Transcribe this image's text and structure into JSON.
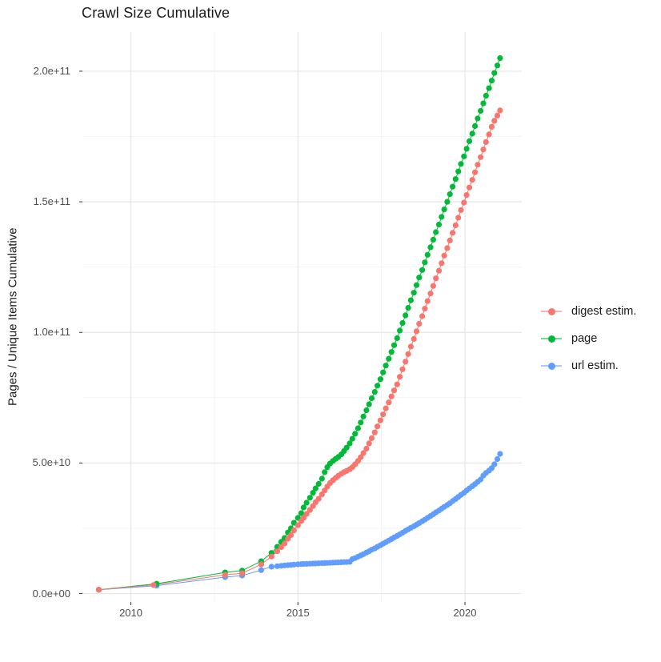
{
  "title": "Crawl Size Cumulative",
  "colors": {
    "digest": "#F8766D",
    "page": "#00BA38",
    "url": "#619CFF",
    "grid_major": "#E6E6E6",
    "grid_minor": "#F2F2F2",
    "tick_mark": "#333333",
    "axis_text": "#4d4d4d",
    "title_text": "#1a1a1a",
    "background": "#FFFFFF"
  },
  "chart_data": {
    "type": "scatter",
    "title": "Crawl Size Cumulative",
    "xlabel": "",
    "ylabel": "Pages / Unique Items Cumulative",
    "grid": true,
    "legend_position": "right",
    "value_unit": "1e9 pages",
    "xlim": [
      2008.55,
      2021.7
    ],
    "ylim": [
      -3.2,
      215
    ],
    "x_ticks": [
      {
        "value": 2010,
        "label": "2010"
      },
      {
        "value": 2015,
        "label": "2015"
      },
      {
        "value": 2020,
        "label": "2020"
      }
    ],
    "y_ticks": [
      {
        "value": 0,
        "label": "0.0e+00"
      },
      {
        "value": 50,
        "label": "5.0e+10"
      },
      {
        "value": 100,
        "label": "1.0e+11"
      },
      {
        "value": 150,
        "label": "1.5e+11"
      },
      {
        "value": 200,
        "label": "2.0e+11"
      }
    ],
    "x_minor_ticks": [
      2012.5,
      2017.5
    ],
    "y_minor_ticks": [
      25,
      75,
      125,
      175
    ],
    "legend": [
      {
        "label": "digest estim.",
        "color": "#F8766D"
      },
      {
        "label": "page",
        "color": "#00BA38"
      },
      {
        "label": "url estim.",
        "color": "#619CFF"
      }
    ],
    "series": [
      {
        "name": "url estim.",
        "color": "#619CFF",
        "points": [
          [
            2009.04,
            1.45
          ],
          [
            2010.77,
            3.05
          ],
          [
            2012.82,
            6.3
          ],
          [
            2013.33,
            6.9
          ],
          [
            2013.9,
            9.0
          ],
          [
            2014.21,
            10.3
          ],
          [
            2014.38,
            10.5
          ],
          [
            2014.5,
            10.65
          ],
          [
            2014.6,
            10.8
          ],
          [
            2014.7,
            10.9
          ],
          [
            2014.79,
            11.0
          ],
          [
            2014.88,
            11.1
          ],
          [
            2015.0,
            11.2
          ],
          [
            2015.1,
            11.3
          ],
          [
            2015.17,
            11.35
          ],
          [
            2015.26,
            11.4
          ],
          [
            2015.36,
            11.45
          ],
          [
            2015.45,
            11.5
          ],
          [
            2015.53,
            11.55
          ],
          [
            2015.62,
            11.6
          ],
          [
            2015.72,
            11.65
          ],
          [
            2015.8,
            11.7
          ],
          [
            2015.88,
            11.75
          ],
          [
            2015.96,
            11.8
          ],
          [
            2016.05,
            11.85
          ],
          [
            2016.13,
            11.9
          ],
          [
            2016.21,
            11.95
          ],
          [
            2016.3,
            12.0
          ],
          [
            2016.38,
            12.05
          ],
          [
            2016.46,
            12.1
          ],
          [
            2016.55,
            12.15
          ],
          [
            2016.63,
            13.2
          ],
          [
            2016.71,
            13.6
          ],
          [
            2016.8,
            14.1
          ],
          [
            2016.88,
            14.6
          ],
          [
            2016.96,
            15.1
          ],
          [
            2017.05,
            15.7
          ],
          [
            2017.13,
            16.2
          ],
          [
            2017.21,
            16.8
          ],
          [
            2017.3,
            17.3
          ],
          [
            2017.38,
            17.9
          ],
          [
            2017.47,
            18.5
          ],
          [
            2017.55,
            19.1
          ],
          [
            2017.63,
            19.7
          ],
          [
            2017.72,
            20.3
          ],
          [
            2017.8,
            20.9
          ],
          [
            2017.88,
            21.5
          ],
          [
            2017.97,
            22.1
          ],
          [
            2018.05,
            22.7
          ],
          [
            2018.13,
            23.3
          ],
          [
            2018.22,
            24.0
          ],
          [
            2018.3,
            24.6
          ],
          [
            2018.38,
            25.2
          ],
          [
            2018.47,
            25.8
          ],
          [
            2018.55,
            26.4
          ],
          [
            2018.63,
            27.0
          ],
          [
            2018.72,
            27.7
          ],
          [
            2018.8,
            28.3
          ],
          [
            2018.88,
            29.0
          ],
          [
            2018.97,
            29.7
          ],
          [
            2019.05,
            30.4
          ],
          [
            2019.13,
            31.1
          ],
          [
            2019.22,
            31.8
          ],
          [
            2019.3,
            32.5
          ],
          [
            2019.38,
            33.2
          ],
          [
            2019.47,
            33.9
          ],
          [
            2019.55,
            34.6
          ],
          [
            2019.63,
            35.4
          ],
          [
            2019.72,
            36.2
          ],
          [
            2019.8,
            37.0
          ],
          [
            2019.88,
            37.8
          ],
          [
            2019.97,
            38.6
          ],
          [
            2020.05,
            39.5
          ],
          [
            2020.13,
            40.3
          ],
          [
            2020.22,
            41.1
          ],
          [
            2020.3,
            41.9
          ],
          [
            2020.38,
            42.8
          ],
          [
            2020.47,
            43.7
          ],
          [
            2020.55,
            45.2
          ],
          [
            2020.63,
            46.2
          ],
          [
            2020.72,
            47.1
          ],
          [
            2020.8,
            48.0
          ],
          [
            2020.88,
            49.5
          ],
          [
            2020.97,
            51.5
          ],
          [
            2021.05,
            53.5
          ]
        ]
      },
      {
        "name": "page",
        "color": "#00BA38",
        "points": [
          [
            2009.04,
            1.5
          ],
          [
            2010.77,
            3.8
          ],
          [
            2012.82,
            8.1
          ],
          [
            2013.33,
            8.8
          ],
          [
            2013.9,
            12.4
          ],
          [
            2014.21,
            15.6
          ],
          [
            2014.38,
            17.9
          ],
          [
            2014.5,
            19.8
          ],
          [
            2014.6,
            21.3
          ],
          [
            2014.7,
            23.4
          ],
          [
            2014.79,
            25.0
          ],
          [
            2014.88,
            27.1
          ],
          [
            2015.0,
            29.0
          ],
          [
            2015.1,
            30.8
          ],
          [
            2015.17,
            33.0
          ],
          [
            2015.26,
            34.8
          ],
          [
            2015.36,
            36.7
          ],
          [
            2015.45,
            38.6
          ],
          [
            2015.53,
            40.3
          ],
          [
            2015.62,
            42.0
          ],
          [
            2015.72,
            44.0
          ],
          [
            2015.8,
            46.5
          ],
          [
            2015.88,
            48.4
          ],
          [
            2015.96,
            49.8
          ],
          [
            2016.05,
            50.8
          ],
          [
            2016.13,
            51.6
          ],
          [
            2016.21,
            52.3
          ],
          [
            2016.3,
            53.3
          ],
          [
            2016.38,
            54.6
          ],
          [
            2016.46,
            55.9
          ],
          [
            2016.55,
            57.5
          ],
          [
            2016.63,
            59.3
          ],
          [
            2016.71,
            61.2
          ],
          [
            2016.8,
            63.3
          ],
          [
            2016.88,
            65.5
          ],
          [
            2016.96,
            67.8
          ],
          [
            2017.05,
            70.2
          ],
          [
            2017.13,
            72.5
          ],
          [
            2017.21,
            74.8
          ],
          [
            2017.3,
            77.2
          ],
          [
            2017.38,
            79.6
          ],
          [
            2017.47,
            82.1
          ],
          [
            2017.55,
            84.7
          ],
          [
            2017.63,
            87.3
          ],
          [
            2017.72,
            89.9
          ],
          [
            2017.8,
            92.5
          ],
          [
            2017.88,
            95.1
          ],
          [
            2017.97,
            97.8
          ],
          [
            2018.05,
            100.7
          ],
          [
            2018.13,
            103.6
          ],
          [
            2018.22,
            106.5
          ],
          [
            2018.3,
            109.4
          ],
          [
            2018.38,
            112.3
          ],
          [
            2018.47,
            115.2
          ],
          [
            2018.55,
            118.1
          ],
          [
            2018.63,
            121.0
          ],
          [
            2018.72,
            123.9
          ],
          [
            2018.8,
            126.8
          ],
          [
            2018.88,
            129.7
          ],
          [
            2018.97,
            132.6
          ],
          [
            2019.05,
            135.5
          ],
          [
            2019.13,
            138.4
          ],
          [
            2019.22,
            141.3
          ],
          [
            2019.3,
            144.2
          ],
          [
            2019.38,
            147.1
          ],
          [
            2019.47,
            150.0
          ],
          [
            2019.55,
            152.9
          ],
          [
            2019.63,
            155.8
          ],
          [
            2019.72,
            158.7
          ],
          [
            2019.8,
            161.6
          ],
          [
            2019.88,
            164.5
          ],
          [
            2019.97,
            167.4
          ],
          [
            2020.05,
            170.3
          ],
          [
            2020.13,
            173.2
          ],
          [
            2020.22,
            176.1
          ],
          [
            2020.3,
            179.0
          ],
          [
            2020.38,
            181.9
          ],
          [
            2020.47,
            184.8
          ],
          [
            2020.55,
            187.7
          ],
          [
            2020.63,
            190.6
          ],
          [
            2020.72,
            193.5
          ],
          [
            2020.8,
            196.4
          ],
          [
            2020.88,
            199.3
          ],
          [
            2020.97,
            202.2
          ],
          [
            2021.05,
            205.0
          ]
        ]
      },
      {
        "name": "digest estim.",
        "color": "#F8766D",
        "points": [
          [
            2009.04,
            1.5
          ],
          [
            2010.68,
            3.3
          ],
          [
            2012.82,
            7.2
          ],
          [
            2013.33,
            7.8
          ],
          [
            2013.9,
            11.2
          ],
          [
            2014.21,
            14.2
          ],
          [
            2014.38,
            16.2
          ],
          [
            2014.5,
            17.8
          ],
          [
            2014.6,
            19.2
          ],
          [
            2014.7,
            21.0
          ],
          [
            2014.79,
            22.4
          ],
          [
            2014.88,
            24.2
          ],
          [
            2015.0,
            26.2
          ],
          [
            2015.1,
            27.8
          ],
          [
            2015.17,
            29.0
          ],
          [
            2015.26,
            30.5
          ],
          [
            2015.36,
            32.0
          ],
          [
            2015.45,
            33.5
          ],
          [
            2015.53,
            35.0
          ],
          [
            2015.62,
            36.3
          ],
          [
            2015.72,
            38.0
          ],
          [
            2015.8,
            39.5
          ],
          [
            2015.88,
            41.0
          ],
          [
            2015.96,
            42.3
          ],
          [
            2016.05,
            43.4
          ],
          [
            2016.13,
            44.3
          ],
          [
            2016.21,
            45.1
          ],
          [
            2016.3,
            45.9
          ],
          [
            2016.38,
            46.5
          ],
          [
            2016.46,
            47.0
          ],
          [
            2016.55,
            47.6
          ],
          [
            2016.63,
            48.4
          ],
          [
            2016.71,
            49.5
          ],
          [
            2016.8,
            50.8
          ],
          [
            2016.88,
            52.2
          ],
          [
            2016.96,
            53.8
          ],
          [
            2017.05,
            55.5
          ],
          [
            2017.13,
            57.5
          ],
          [
            2017.21,
            59.5
          ],
          [
            2017.3,
            61.7
          ],
          [
            2017.38,
            64.0
          ],
          [
            2017.47,
            66.3
          ],
          [
            2017.55,
            68.6
          ],
          [
            2017.63,
            70.9
          ],
          [
            2017.72,
            73.2
          ],
          [
            2017.8,
            75.5
          ],
          [
            2017.88,
            77.8
          ],
          [
            2017.97,
            80.1
          ],
          [
            2018.05,
            83.0
          ],
          [
            2018.13,
            85.9
          ],
          [
            2018.22,
            88.8
          ],
          [
            2018.3,
            91.7
          ],
          [
            2018.38,
            94.6
          ],
          [
            2018.47,
            97.5
          ],
          [
            2018.55,
            100.4
          ],
          [
            2018.63,
            103.3
          ],
          [
            2018.72,
            106.2
          ],
          [
            2018.8,
            109.1
          ],
          [
            2018.88,
            112.0
          ],
          [
            2018.97,
            114.9
          ],
          [
            2019.05,
            117.8
          ],
          [
            2019.13,
            120.7
          ],
          [
            2019.22,
            123.6
          ],
          [
            2019.3,
            126.5
          ],
          [
            2019.38,
            129.4
          ],
          [
            2019.47,
            132.3
          ],
          [
            2019.55,
            135.2
          ],
          [
            2019.63,
            138.1
          ],
          [
            2019.72,
            141.0
          ],
          [
            2019.8,
            143.9
          ],
          [
            2019.88,
            146.8
          ],
          [
            2019.97,
            149.7
          ],
          [
            2020.05,
            152.6
          ],
          [
            2020.13,
            155.5
          ],
          [
            2020.22,
            158.4
          ],
          [
            2020.3,
            161.3
          ],
          [
            2020.38,
            164.2
          ],
          [
            2020.47,
            167.1
          ],
          [
            2020.55,
            170.0
          ],
          [
            2020.63,
            172.9
          ],
          [
            2020.72,
            175.8
          ],
          [
            2020.8,
            178.7
          ],
          [
            2020.88,
            181.0
          ],
          [
            2020.97,
            183.0
          ],
          [
            2021.05,
            185.0
          ]
        ]
      }
    ]
  }
}
